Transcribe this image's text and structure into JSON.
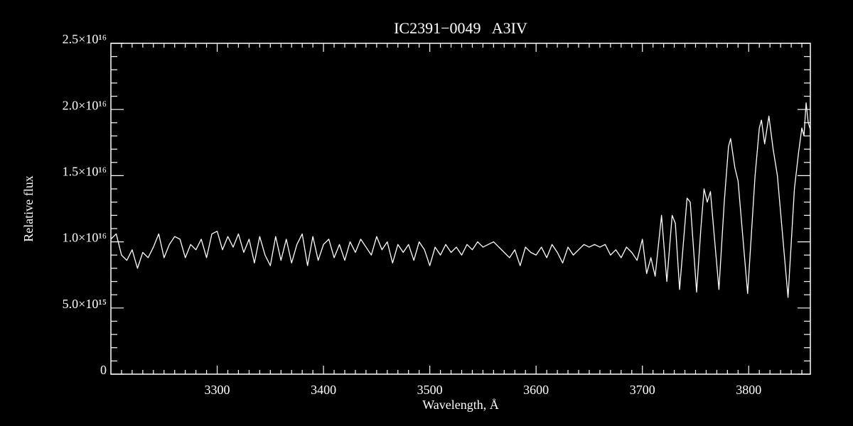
{
  "chart_data": {
    "type": "line",
    "title": "IC2391−0049   A3IV",
    "x_label": "Wavelength, Å",
    "y_label": "Relative flux",
    "color": "#ffffff",
    "grid": false,
    "xlim": [
      3200,
      3858
    ],
    "ylim": [
      0,
      2.5e+16
    ],
    "xticks": [
      3300,
      3400,
      3500,
      3600,
      3700,
      3800
    ],
    "xminorticks": [
      3210,
      3220,
      3230,
      3240,
      3250,
      3260,
      3270,
      3280,
      3290,
      3310,
      3320,
      3330,
      3340,
      3350,
      3360,
      3370,
      3380,
      3390,
      3410,
      3420,
      3430,
      3440,
      3450,
      3460,
      3470,
      3480,
      3490,
      3510,
      3520,
      3530,
      3540,
      3550,
      3560,
      3570,
      3580,
      3590,
      3610,
      3620,
      3630,
      3640,
      3650,
      3660,
      3670,
      3680,
      3690,
      3710,
      3720,
      3730,
      3740,
      3750,
      3760,
      3770,
      3780,
      3790,
      3810,
      3820,
      3830,
      3840,
      3850
    ],
    "yticks": [
      0,
      {
        "value": 5000000000000000.0,
        "label": "5.0×10¹⁵"
      },
      {
        "value": 1e+16,
        "label": "1.0×10¹⁶"
      },
      {
        "value": 1.5e+16,
        "label": "1.5×10¹⁶"
      },
      {
        "value": 2e+16,
        "label": "2.0×10¹⁶"
      },
      {
        "value": 2.5e+16,
        "label": "2.5×10¹⁶"
      }
    ],
    "yminorticks": [
      1000000000000000.0,
      2000000000000000.0,
      3000000000000000.0,
      4000000000000000.0,
      6000000000000000.0,
      7000000000000000.0,
      8000000000000000.0,
      9000000000000000.0,
      1.1e+16,
      1.2e+16,
      1.3e+16,
      1.4e+16,
      1.6e+16,
      1.7e+16,
      1.8e+16,
      1.9e+16,
      2.1e+16,
      2.2e+16,
      2.3e+16,
      2.4e+16
    ],
    "x": [
      3200,
      3205,
      3210,
      3215,
      3220,
      3225,
      3230,
      3235,
      3240,
      3245,
      3250,
      3255,
      3260,
      3265,
      3270,
      3275,
      3280,
      3285,
      3290,
      3295,
      3300,
      3305,
      3310,
      3315,
      3320,
      3325,
      3330,
      3335,
      3340,
      3345,
      3350,
      3355,
      3360,
      3365,
      3370,
      3375,
      3380,
      3385,
      3390,
      3395,
      3400,
      3405,
      3410,
      3415,
      3420,
      3425,
      3430,
      3435,
      3440,
      3445,
      3450,
      3455,
      3460,
      3465,
      3470,
      3475,
      3480,
      3485,
      3490,
      3495,
      3500,
      3505,
      3510,
      3515,
      3520,
      3525,
      3530,
      3535,
      3540,
      3545,
      3550,
      3555,
      3560,
      3565,
      3570,
      3575,
      3580,
      3585,
      3590,
      3595,
      3600,
      3605,
      3610,
      3615,
      3620,
      3625,
      3630,
      3635,
      3640,
      3645,
      3650,
      3655,
      3660,
      3665,
      3670,
      3675,
      3680,
      3685,
      3690,
      3695,
      3700,
      3704,
      3708,
      3712,
      3718,
      3723,
      3728,
      3731,
      3735,
      3742,
      3745,
      3751,
      3755,
      3758,
      3761,
      3764,
      3772,
      3777,
      3781,
      3783,
      3787,
      3790,
      3799,
      3806,
      3810,
      3812,
      3815,
      3819,
      3823,
      3827,
      3837,
      3843,
      3847,
      3850,
      3852,
      3854,
      3856,
      3858
    ],
    "values": [
      1.02e+16,
      1.06e+16,
      9000000000000000.0,
      8600000000000000.0,
      9400000000000000.0,
      8000000000000000.0,
      9200000000000000.0,
      8800000000000000.0,
      9600000000000000.0,
      1.06e+16,
      8800000000000000.0,
      9800000000000000.0,
      1.04e+16,
      1.02e+16,
      8800000000000000.0,
      9800000000000000.0,
      9400000000000000.0,
      1.02e+16,
      8800000000000000.0,
      1.06e+16,
      1.08e+16,
      9400000000000000.0,
      1.04e+16,
      9600000000000000.0,
      1.06e+16,
      9200000000000000.0,
      1.02e+16,
      8400000000000000.0,
      1.04e+16,
      9000000000000000.0,
      8200000000000000.0,
      1.04e+16,
      8600000000000000.0,
      1.02e+16,
      8400000000000000.0,
      9800000000000000.0,
      1.06e+16,
      8200000000000000.0,
      1.04e+16,
      8600000000000000.0,
      9800000000000000.0,
      1.02e+16,
      8800000000000000.0,
      9800000000000000.0,
      8600000000000000.0,
      1e+16,
      9200000000000000.0,
      1.02e+16,
      9600000000000000.0,
      9000000000000000.0,
      1.04e+16,
      9400000000000000.0,
      1e+16,
      8400000000000000.0,
      9800000000000000.0,
      9200000000000000.0,
      9800000000000000.0,
      8600000000000000.0,
      1e+16,
      9400000000000000.0,
      8200000000000000.0,
      9600000000000000.0,
      9000000000000000.0,
      9800000000000000.0,
      9200000000000000.0,
      9600000000000000.0,
      9000000000000000.0,
      9800000000000000.0,
      9400000000000000.0,
      1e+16,
      9600000000000000.0,
      9800000000000000.0,
      1e+16,
      9600000000000000.0,
      9200000000000000.0,
      8800000000000000.0,
      9400000000000000.0,
      8200000000000000.0,
      9600000000000000.0,
      9200000000000000.0,
      9000000000000000.0,
      9600000000000000.0,
      8800000000000000.0,
      9800000000000000.0,
      9200000000000000.0,
      8400000000000000.0,
      9600000000000000.0,
      9000000000000000.0,
      9400000000000000.0,
      9800000000000000.0,
      9600000000000000.0,
      9800000000000000.0,
      9600000000000000.0,
      9800000000000000.0,
      9000000000000000.0,
      9400000000000000.0,
      8800000000000000.0,
      9600000000000000.0,
      9200000000000000.0,
      8600000000000000.0,
      1.02e+16,
      7600000000000000.0,
      8800000000000000.0,
      7400000000000000.0,
      1.2e+16,
      7000000000000000.0,
      1.2e+16,
      1.14e+16,
      6400000000000000.0,
      1.33e+16,
      1.3e+16,
      6200000000000000.0,
      1.1e+16,
      1.4e+16,
      1.3e+16,
      1.38e+16,
      6400000000000000.0,
      1.3e+16,
      1.72e+16,
      1.78e+16,
      1.56e+16,
      1.46e+16,
      6100000000000000.0,
      1.5e+16,
      1.86e+16,
      1.92e+16,
      1.74e+16,
      1.95e+16,
      1.7e+16,
      1.5e+16,
      5800000000000000.0,
      1.4e+16,
      1.68e+16,
      1.86e+16,
      1.8e+16,
      2.05e+16,
      1.9e+16,
      1.85e+16
    ]
  }
}
